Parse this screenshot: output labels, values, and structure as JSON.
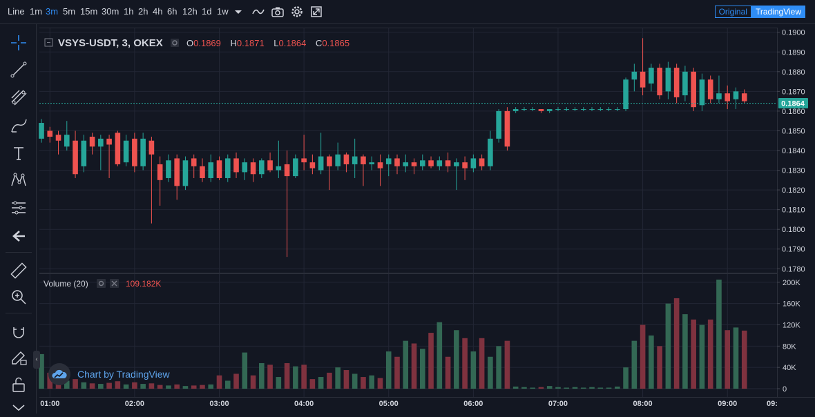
{
  "toolbar": {
    "intervals": [
      "Line",
      "1m",
      "3m",
      "5m",
      "15m",
      "30m",
      "1h",
      "2h",
      "4h",
      "6h",
      "12h",
      "1d",
      "1w"
    ],
    "active_interval": "3m",
    "view_original": "Original",
    "view_tradingview": "TradingView"
  },
  "legend": {
    "symbol": "VSYS-USDT, 3, OKEX",
    "o_label": "O",
    "o_value": "0.1869",
    "h_label": "H",
    "h_value": "0.1871",
    "l_label": "L",
    "l_value": "0.1864",
    "c_label": "C",
    "c_value": "0.1865"
  },
  "volume_legend": {
    "title": "Volume (20)",
    "value": "109.182K"
  },
  "price_axis_labels": [
    "0.1900",
    "0.1890",
    "0.1880",
    "0.1870",
    "0.1860",
    "0.1850",
    "0.1840",
    "0.1830",
    "0.1820",
    "0.1810",
    "0.1800",
    "0.1790",
    "0.1780"
  ],
  "last_price_label": "0.1864",
  "volume_axis_labels": [
    "200K",
    "160K",
    "120K",
    "80K",
    "40K",
    "0"
  ],
  "time_axis_labels": [
    "01:00",
    "02:00",
    "03:00",
    "04:00",
    "05:00",
    "06:00",
    "07:00",
    "08:00",
    "09:00",
    "09:"
  ],
  "watermark": "Chart by TradingView",
  "colors": {
    "up": "#26a69a",
    "down": "#ef5350",
    "up_volume": "#336854",
    "down_volume": "#7f323f",
    "accent": "#2f8df5",
    "last_price": "#26a69a"
  },
  "chart_data": {
    "type": "candlestick",
    "symbol": "VSYS-USDT",
    "interval": "3",
    "exchange": "OKEX",
    "price_ylim": [
      0.1778,
      0.1902
    ],
    "volume_ylim": [
      0,
      205000
    ],
    "x_start": "00:54",
    "x_end": "09:18",
    "last_price": 0.1864,
    "series": [
      {
        "t": "00:54",
        "o": 0.1846,
        "h": 0.1856,
        "l": 0.1844,
        "c": 0.1854,
        "v": 65000
      },
      {
        "t": "01:00",
        "o": 0.185,
        "h": 0.1852,
        "l": 0.1844,
        "c": 0.1847,
        "v": 30000
      },
      {
        "t": "01:06",
        "o": 0.1848,
        "h": 0.185,
        "l": 0.1838,
        "c": 0.1845,
        "v": 20000
      },
      {
        "t": "01:12",
        "o": 0.1842,
        "h": 0.1855,
        "l": 0.184,
        "c": 0.1848,
        "v": 15000
      },
      {
        "t": "01:18",
        "o": 0.1845,
        "h": 0.185,
        "l": 0.1826,
        "c": 0.1828,
        "v": 18000
      },
      {
        "t": "01:24",
        "o": 0.1832,
        "h": 0.1848,
        "l": 0.1829,
        "c": 0.1845,
        "v": 12000
      },
      {
        "t": "01:30",
        "o": 0.1847,
        "h": 0.1849,
        "l": 0.1838,
        "c": 0.1842,
        "v": 10000
      },
      {
        "t": "01:36",
        "o": 0.1842,
        "h": 0.1848,
        "l": 0.183,
        "c": 0.1846,
        "v": 9000
      },
      {
        "t": "01:42",
        "o": 0.1846,
        "h": 0.1848,
        "l": 0.1826,
        "c": 0.1843,
        "v": 11000
      },
      {
        "t": "01:48",
        "o": 0.1849,
        "h": 0.185,
        "l": 0.1832,
        "c": 0.1833,
        "v": 14000
      },
      {
        "t": "01:54",
        "o": 0.1834,
        "h": 0.1848,
        "l": 0.1832,
        "c": 0.1845,
        "v": 8000
      },
      {
        "t": "02:00",
        "o": 0.1846,
        "h": 0.1849,
        "l": 0.1829,
        "c": 0.1832,
        "v": 12000
      },
      {
        "t": "02:06",
        "o": 0.1832,
        "h": 0.1849,
        "l": 0.183,
        "c": 0.1846,
        "v": 9000
      },
      {
        "t": "02:12",
        "o": 0.1845,
        "h": 0.1847,
        "l": 0.1803,
        "c": 0.1838,
        "v": 10000
      },
      {
        "t": "02:18",
        "o": 0.1833,
        "h": 0.1837,
        "l": 0.1812,
        "c": 0.1825,
        "v": 7000
      },
      {
        "t": "02:24",
        "o": 0.1826,
        "h": 0.1838,
        "l": 0.1824,
        "c": 0.1835,
        "v": 6000
      },
      {
        "t": "02:30",
        "o": 0.1836,
        "h": 0.1838,
        "l": 0.1815,
        "c": 0.1822,
        "v": 8000
      },
      {
        "t": "02:36",
        "o": 0.1822,
        "h": 0.1837,
        "l": 0.182,
        "c": 0.1835,
        "v": 5000
      },
      {
        "t": "02:42",
        "o": 0.1836,
        "h": 0.1838,
        "l": 0.1826,
        "c": 0.1832,
        "v": 6000
      },
      {
        "t": "02:48",
        "o": 0.1832,
        "h": 0.1836,
        "l": 0.1824,
        "c": 0.1826,
        "v": 7000
      },
      {
        "t": "02:54",
        "o": 0.1826,
        "h": 0.1838,
        "l": 0.1824,
        "c": 0.1834,
        "v": 8000
      },
      {
        "t": "03:00",
        "o": 0.1835,
        "h": 0.1837,
        "l": 0.1825,
        "c": 0.1826,
        "v": 25000
      },
      {
        "t": "03:06",
        "o": 0.1826,
        "h": 0.1838,
        "l": 0.1824,
        "c": 0.1836,
        "v": 15000
      },
      {
        "t": "03:12",
        "o": 0.1836,
        "h": 0.1839,
        "l": 0.1826,
        "c": 0.1829,
        "v": 28000
      },
      {
        "t": "03:18",
        "o": 0.1829,
        "h": 0.1836,
        "l": 0.1825,
        "c": 0.1834,
        "v": 68000
      },
      {
        "t": "03:24",
        "o": 0.1834,
        "h": 0.1836,
        "l": 0.1824,
        "c": 0.1828,
        "v": 25000
      },
      {
        "t": "03:30",
        "o": 0.1828,
        "h": 0.1836,
        "l": 0.1826,
        "c": 0.1835,
        "v": 48000
      },
      {
        "t": "03:36",
        "o": 0.1835,
        "h": 0.1839,
        "l": 0.1829,
        "c": 0.183,
        "v": 45000
      },
      {
        "t": "03:42",
        "o": 0.183,
        "h": 0.1845,
        "l": 0.1826,
        "c": 0.1832,
        "v": 22000
      },
      {
        "t": "03:48",
        "o": 0.1833,
        "h": 0.184,
        "l": 0.1786,
        "c": 0.1827,
        "v": 48000
      },
      {
        "t": "03:54",
        "o": 0.1827,
        "h": 0.1838,
        "l": 0.1826,
        "c": 0.1836,
        "v": 42000
      },
      {
        "t": "04:00",
        "o": 0.1836,
        "h": 0.1848,
        "l": 0.183,
        "c": 0.1834,
        "v": 45000
      },
      {
        "t": "04:06",
        "o": 0.1834,
        "h": 0.1838,
        "l": 0.1828,
        "c": 0.1831,
        "v": 18000
      },
      {
        "t": "04:12",
        "o": 0.183,
        "h": 0.1849,
        "l": 0.1828,
        "c": 0.1837,
        "v": 22000
      },
      {
        "t": "04:18",
        "o": 0.1837,
        "h": 0.1838,
        "l": 0.182,
        "c": 0.1832,
        "v": 30000
      },
      {
        "t": "04:24",
        "o": 0.1832,
        "h": 0.1844,
        "l": 0.183,
        "c": 0.1838,
        "v": 40000
      },
      {
        "t": "04:30",
        "o": 0.1838,
        "h": 0.1839,
        "l": 0.1829,
        "c": 0.1833,
        "v": 35000
      },
      {
        "t": "04:36",
        "o": 0.1833,
        "h": 0.1846,
        "l": 0.1826,
        "c": 0.1837,
        "v": 28000
      },
      {
        "t": "04:42",
        "o": 0.1837,
        "h": 0.1838,
        "l": 0.1822,
        "c": 0.1833,
        "v": 22000
      },
      {
        "t": "04:48",
        "o": 0.1833,
        "h": 0.1837,
        "l": 0.183,
        "c": 0.1834,
        "v": 25000
      },
      {
        "t": "04:54",
        "o": 0.1834,
        "h": 0.1838,
        "l": 0.1822,
        "c": 0.1831,
        "v": 20000
      },
      {
        "t": "05:00",
        "o": 0.1833,
        "h": 0.1838,
        "l": 0.1827,
        "c": 0.1836,
        "v": 70000
      },
      {
        "t": "05:06",
        "o": 0.1836,
        "h": 0.1838,
        "l": 0.1828,
        "c": 0.1832,
        "v": 60000
      },
      {
        "t": "05:12",
        "o": 0.1832,
        "h": 0.1838,
        "l": 0.1829,
        "c": 0.1834,
        "v": 90000
      },
      {
        "t": "05:18",
        "o": 0.1834,
        "h": 0.1836,
        "l": 0.1828,
        "c": 0.1832,
        "v": 85000
      },
      {
        "t": "05:24",
        "o": 0.1832,
        "h": 0.1838,
        "l": 0.183,
        "c": 0.1835,
        "v": 75000
      },
      {
        "t": "05:30",
        "o": 0.1835,
        "h": 0.1837,
        "l": 0.1831,
        "c": 0.1832,
        "v": 105000
      },
      {
        "t": "05:36",
        "o": 0.1832,
        "h": 0.1837,
        "l": 0.183,
        "c": 0.1835,
        "v": 125000
      },
      {
        "t": "05:42",
        "o": 0.1835,
        "h": 0.1839,
        "l": 0.1829,
        "c": 0.1832,
        "v": 60000
      },
      {
        "t": "05:48",
        "o": 0.1832,
        "h": 0.1836,
        "l": 0.182,
        "c": 0.1834,
        "v": 110000
      },
      {
        "t": "05:54",
        "o": 0.1834,
        "h": 0.1837,
        "l": 0.1825,
        "c": 0.1831,
        "v": 95000
      },
      {
        "t": "06:00",
        "o": 0.1831,
        "h": 0.1838,
        "l": 0.1829,
        "c": 0.1836,
        "v": 70000
      },
      {
        "t": "06:06",
        "o": 0.1836,
        "h": 0.1838,
        "l": 0.183,
        "c": 0.1832,
        "v": 95000
      },
      {
        "t": "06:12",
        "o": 0.1832,
        "h": 0.185,
        "l": 0.183,
        "c": 0.1846,
        "v": 60000
      },
      {
        "t": "06:18",
        "o": 0.1846,
        "h": 0.1861,
        "l": 0.1844,
        "c": 0.186,
        "v": 80000
      },
      {
        "t": "06:24",
        "o": 0.186,
        "h": 0.1862,
        "l": 0.184,
        "c": 0.1842,
        "v": 90000
      },
      {
        "t": "06:30",
        "o": 0.186,
        "h": 0.1862,
        "l": 0.1859,
        "c": 0.1861,
        "v": 4000
      },
      {
        "t": "06:36",
        "o": 0.1861,
        "h": 0.1862,
        "l": 0.186,
        "c": 0.1861,
        "v": 3000
      },
      {
        "t": "06:42",
        "o": 0.1861,
        "h": 0.1862,
        "l": 0.186,
        "c": 0.1861,
        "v": 2000
      },
      {
        "t": "06:48",
        "o": 0.1861,
        "h": 0.1861,
        "l": 0.1859,
        "c": 0.186,
        "v": 3000
      },
      {
        "t": "06:54",
        "o": 0.186,
        "h": 0.1861,
        "l": 0.1859,
        "c": 0.1861,
        "v": 5000
      },
      {
        "t": "07:00",
        "o": 0.1861,
        "h": 0.1862,
        "l": 0.186,
        "c": 0.1861,
        "v": 3000
      },
      {
        "t": "07:06",
        "o": 0.1861,
        "h": 0.1862,
        "l": 0.186,
        "c": 0.1861,
        "v": 2000
      },
      {
        "t": "07:12",
        "o": 0.1861,
        "h": 0.1862,
        "l": 0.186,
        "c": 0.1861,
        "v": 3000
      },
      {
        "t": "07:18",
        "o": 0.1861,
        "h": 0.1862,
        "l": 0.186,
        "c": 0.1861,
        "v": 2000
      },
      {
        "t": "07:24",
        "o": 0.1861,
        "h": 0.1862,
        "l": 0.186,
        "c": 0.1861,
        "v": 3000
      },
      {
        "t": "07:30",
        "o": 0.1861,
        "h": 0.1862,
        "l": 0.186,
        "c": 0.1861,
        "v": 2000
      },
      {
        "t": "07:36",
        "o": 0.1861,
        "h": 0.1862,
        "l": 0.186,
        "c": 0.1861,
        "v": 2000
      },
      {
        "t": "07:42",
        "o": 0.1861,
        "h": 0.1862,
        "l": 0.186,
        "c": 0.1861,
        "v": 4000
      },
      {
        "t": "07:48",
        "o": 0.1861,
        "h": 0.1877,
        "l": 0.186,
        "c": 0.1876,
        "v": 40000
      },
      {
        "t": "07:54",
        "o": 0.1876,
        "h": 0.1884,
        "l": 0.187,
        "c": 0.188,
        "v": 90000
      },
      {
        "t": "08:00",
        "o": 0.188,
        "h": 0.1897,
        "l": 0.1868,
        "c": 0.1872,
        "v": 120000
      },
      {
        "t": "08:06",
        "o": 0.1874,
        "h": 0.1884,
        "l": 0.187,
        "c": 0.1882,
        "v": 100000
      },
      {
        "t": "08:12",
        "o": 0.1882,
        "h": 0.1884,
        "l": 0.1866,
        "c": 0.1868,
        "v": 80000
      },
      {
        "t": "08:18",
        "o": 0.187,
        "h": 0.1885,
        "l": 0.1866,
        "c": 0.1882,
        "v": 160000
      },
      {
        "t": "08:24",
        "o": 0.1882,
        "h": 0.1884,
        "l": 0.1864,
        "c": 0.1867,
        "v": 170000
      },
      {
        "t": "08:30",
        "o": 0.1868,
        "h": 0.1883,
        "l": 0.1865,
        "c": 0.188,
        "v": 140000
      },
      {
        "t": "08:36",
        "o": 0.188,
        "h": 0.1882,
        "l": 0.186,
        "c": 0.1862,
        "v": 130000
      },
      {
        "t": "08:42",
        "o": 0.1863,
        "h": 0.1879,
        "l": 0.186,
        "c": 0.1876,
        "v": 120000
      },
      {
        "t": "08:48",
        "o": 0.1876,
        "h": 0.1878,
        "l": 0.1864,
        "c": 0.1866,
        "v": 130000
      },
      {
        "t": "08:54",
        "o": 0.1866,
        "h": 0.1878,
        "l": 0.1864,
        "c": 0.1869,
        "v": 205000
      },
      {
        "t": "09:00",
        "o": 0.1869,
        "h": 0.1873,
        "l": 0.1861,
        "c": 0.1865,
        "v": 110000
      },
      {
        "t": "09:06",
        "o": 0.1866,
        "h": 0.1872,
        "l": 0.1861,
        "c": 0.187,
        "v": 115000
      },
      {
        "t": "09:12",
        "o": 0.1869,
        "h": 0.1871,
        "l": 0.1864,
        "c": 0.1865,
        "v": 109182
      }
    ]
  }
}
